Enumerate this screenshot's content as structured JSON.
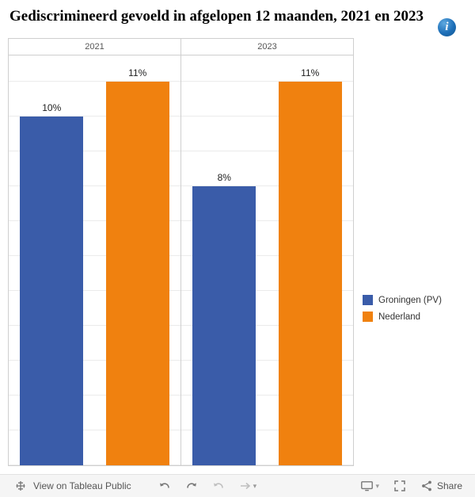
{
  "header": {
    "title": "Gediscrimineerd gevoeld in afgelopen 12 maanden, 2021 en 2023",
    "info_icon": "i"
  },
  "chart_data": {
    "type": "bar",
    "title": "Gediscrimineerd gevoeld in afgelopen 12 maanden, 2021 en 2023",
    "unit": "%",
    "ylim": [
      0,
      11.75
    ],
    "grid_step": 1,
    "legend_position": "right",
    "categories": [
      "2021",
      "2023"
    ],
    "series": [
      {
        "name": "Groningen (PV)",
        "color": "#3A5CA9",
        "values": [
          10,
          8
        ]
      },
      {
        "name": "Nederland",
        "color": "#F0810F",
        "values": [
          11,
          11
        ]
      }
    ],
    "panels": [
      {
        "label": "2021",
        "bars": [
          {
            "series": "Groningen (PV)",
            "value": 10,
            "label": "10%"
          },
          {
            "series": "Nederland",
            "value": 11,
            "label": "11%"
          }
        ]
      },
      {
        "label": "2023",
        "bars": [
          {
            "series": "Groningen (PV)",
            "value": 8,
            "label": "8%"
          },
          {
            "series": "Nederland",
            "value": 11,
            "label": "11%"
          }
        ]
      }
    ]
  },
  "legend": {
    "items": [
      {
        "label": "Groningen (PV)",
        "color": "#3A5CA9"
      },
      {
        "label": "Nederland",
        "color": "#F0810F"
      }
    ]
  },
  "toolbar": {
    "view_label": "View on Tableau Public",
    "share_label": "Share",
    "icons": [
      "tableau-logo",
      "undo",
      "redo",
      "replay",
      "forward",
      "caret-down",
      "download-display",
      "caret-down",
      "fullscreen",
      "share"
    ]
  }
}
